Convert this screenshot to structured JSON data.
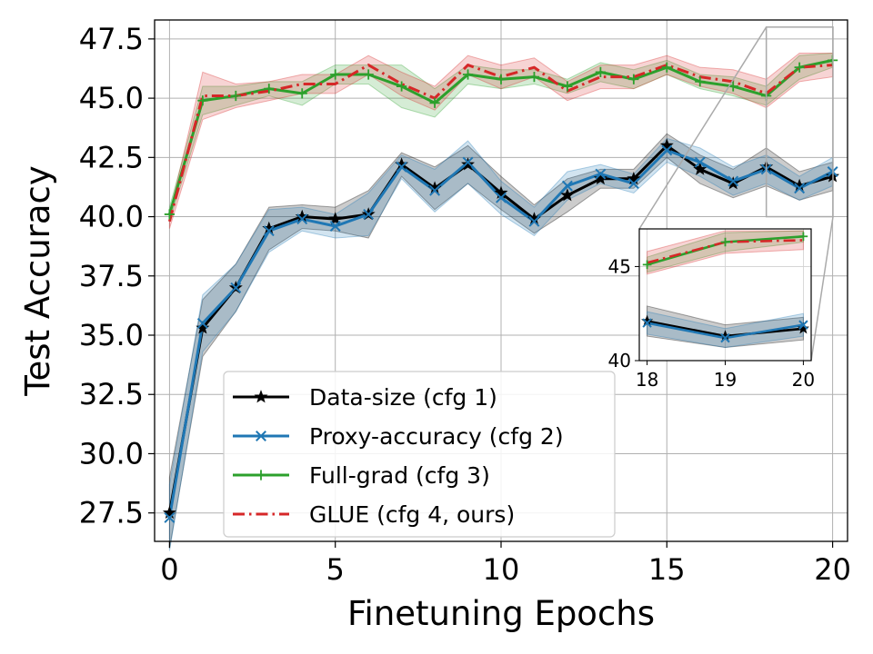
{
  "chart_data": {
    "type": "line",
    "title": "",
    "xlabel": "Finetuning Epochs",
    "ylabel": "Test Accuracy",
    "xlim": [
      -0.45,
      20.45
    ],
    "ylim": [
      26.3,
      48.3
    ],
    "xticks": [
      0,
      5,
      10,
      15,
      20
    ],
    "yticks": [
      27.5,
      30.0,
      32.5,
      35.0,
      37.5,
      40.0,
      42.5,
      45.0,
      47.5
    ],
    "ytick_labels": [
      "27.5",
      "30.0",
      "32.5",
      "35.0",
      "37.5",
      "40.0",
      "42.5",
      "45.0",
      "47.5"
    ],
    "grid": true,
    "legend_position": "lower-left",
    "x": [
      0,
      1,
      2,
      3,
      4,
      5,
      6,
      7,
      8,
      9,
      10,
      11,
      12,
      13,
      14,
      15,
      16,
      17,
      18,
      19,
      20
    ],
    "series": [
      {
        "name": "Data-size (cfg 1)",
        "color": "#000000",
        "marker": "star",
        "dash": "solid",
        "values": [
          27.5,
          35.3,
          37.0,
          39.5,
          40.0,
          39.9,
          40.1,
          42.2,
          41.2,
          42.2,
          41.0,
          39.9,
          40.9,
          41.6,
          41.6,
          43.0,
          42.0,
          41.4,
          42.1,
          41.3,
          41.7
        ],
        "band": [
          1.5,
          1.2,
          1.0,
          0.9,
          0.5,
          0.5,
          1.0,
          0.5,
          0.9,
          0.8,
          0.7,
          0.6,
          0.7,
          0.4,
          0.4,
          0.5,
          0.6,
          0.6,
          0.8,
          0.6,
          0.6
        ]
      },
      {
        "name": "Proxy-accuracy (cfg 2)",
        "color": "#1f77b4",
        "marker": "x",
        "dash": "solid",
        "values": [
          27.3,
          35.5,
          37.0,
          39.4,
          39.9,
          39.6,
          40.1,
          42.1,
          41.1,
          42.3,
          40.8,
          39.8,
          41.3,
          41.8,
          41.4,
          42.8,
          42.3,
          41.5,
          42.0,
          41.2,
          41.9
        ],
        "band": [
          1.4,
          1.2,
          1.0,
          0.9,
          0.5,
          0.5,
          0.9,
          0.5,
          0.9,
          0.9,
          0.7,
          0.6,
          0.6,
          0.4,
          0.4,
          0.5,
          0.6,
          0.6,
          0.6,
          0.5,
          0.6
        ]
      },
      {
        "name": "Full-grad (cfg 3)",
        "color": "#2ca02c",
        "marker": "plus",
        "dash": "solid",
        "values": [
          40.1,
          44.9,
          45.1,
          45.4,
          45.2,
          46.0,
          46.0,
          45.5,
          44.8,
          46.0,
          45.8,
          45.9,
          45.5,
          46.1,
          45.8,
          46.3,
          45.7,
          45.5,
          45.1,
          46.3,
          46.6
        ],
        "band": [
          0.3,
          0.6,
          0.4,
          0.3,
          0.5,
          0.4,
          0.4,
          0.9,
          0.6,
          0.4,
          0.4,
          0.3,
          0.3,
          0.4,
          0.4,
          0.3,
          0.3,
          0.4,
          0.4,
          0.5,
          0.3
        ]
      },
      {
        "name": "GLUE (cfg 4, ours)",
        "color": "#d62728",
        "marker": "none",
        "dash": "dashdot",
        "values": [
          39.8,
          45.1,
          45.1,
          45.3,
          45.6,
          45.6,
          46.4,
          45.6,
          45.0,
          46.4,
          45.9,
          46.3,
          45.3,
          45.9,
          45.9,
          46.4,
          45.9,
          45.7,
          45.2,
          46.3,
          46.4
        ],
        "band": [
          0.3,
          1.0,
          0.5,
          0.4,
          0.4,
          0.4,
          0.4,
          0.5,
          0.5,
          0.4,
          0.5,
          0.4,
          0.4,
          0.5,
          0.5,
          0.4,
          0.4,
          0.5,
          0.6,
          0.6,
          0.5
        ]
      }
    ],
    "inset": {
      "xlim": [
        17.9,
        20.1
      ],
      "ylim": [
        40.0,
        47.0
      ],
      "xticks": [
        18,
        19,
        20
      ],
      "yticks": [
        40,
        45
      ],
      "zoom_region": {
        "x": [
          18,
          20.45
        ],
        "y": [
          40.0,
          48.0
        ]
      }
    }
  }
}
